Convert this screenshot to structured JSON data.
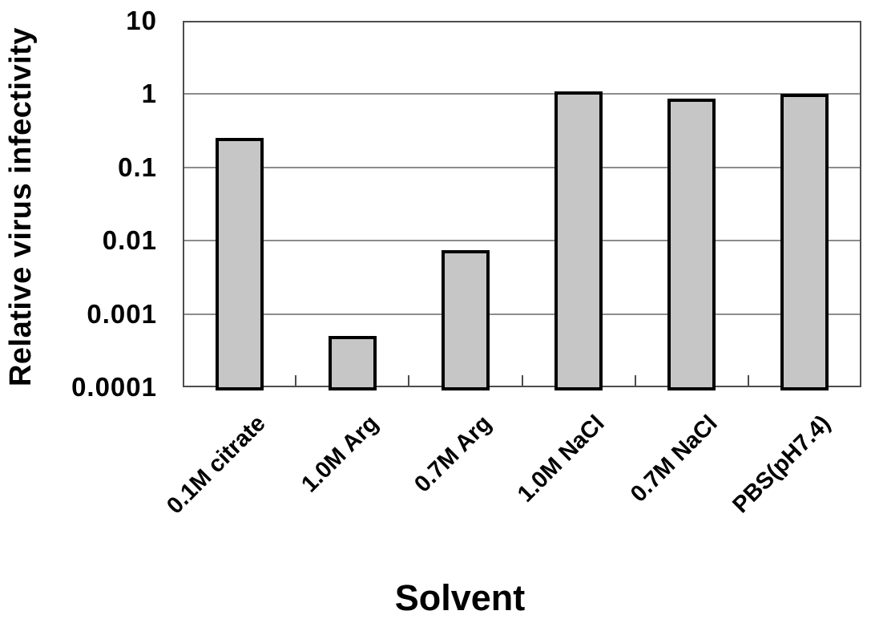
{
  "chart_data": {
    "type": "bar",
    "title": "",
    "xlabel": "Solvent",
    "ylabel": "Relative virus infectivity",
    "yscale": "log",
    "ylim": [
      0.0001,
      10
    ],
    "ytick_labels": [
      "10",
      "1",
      "0.1",
      "0.01",
      "0.001",
      "0.0001"
    ],
    "categories": [
      "0.1M citrate",
      "1.0M Arg",
      "0.7M Arg",
      "1.0M NaCl",
      "0.7M NaCl",
      "PBS(pH7.4)"
    ],
    "values": [
      0.25,
      0.0005,
      0.0075,
      1.1,
      0.88,
      1.0
    ],
    "grid": true,
    "legend": "none",
    "colors": {
      "bar_fill": "#c6c6c6",
      "bar_border": "#000000",
      "grid_color": "#8c8c8c",
      "axis_color": "#4d4d4d",
      "text_color": "#000000",
      "background": "#ffffff"
    }
  }
}
